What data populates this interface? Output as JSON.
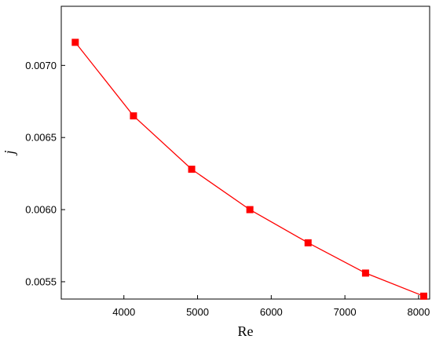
{
  "chart_data": {
    "type": "line",
    "title": "",
    "xlabel": "Re",
    "ylabel": "j",
    "xlim": [
      3150,
      8150
    ],
    "ylim": [
      0.00538,
      0.00741
    ],
    "x_ticks": [
      4000,
      5000,
      6000,
      7000,
      8000
    ],
    "x_tick_labels": [
      "4000",
      "5000",
      "6000",
      "7000",
      "8000"
    ],
    "y_ticks": [
      0.0055,
      0.006,
      0.0065,
      0.007
    ],
    "y_tick_labels": [
      "0.0055",
      "0.0060",
      "0.0065",
      "0.0070"
    ],
    "grid": false,
    "series": [
      {
        "x": [
          3340,
          4130,
          4920,
          5710,
          6500,
          7280,
          8070
        ],
        "y": [
          0.00716,
          0.00665,
          0.00628,
          0.006,
          0.00577,
          0.00556,
          0.0054
        ],
        "color": "#ff0000",
        "marker": "square"
      }
    ]
  }
}
